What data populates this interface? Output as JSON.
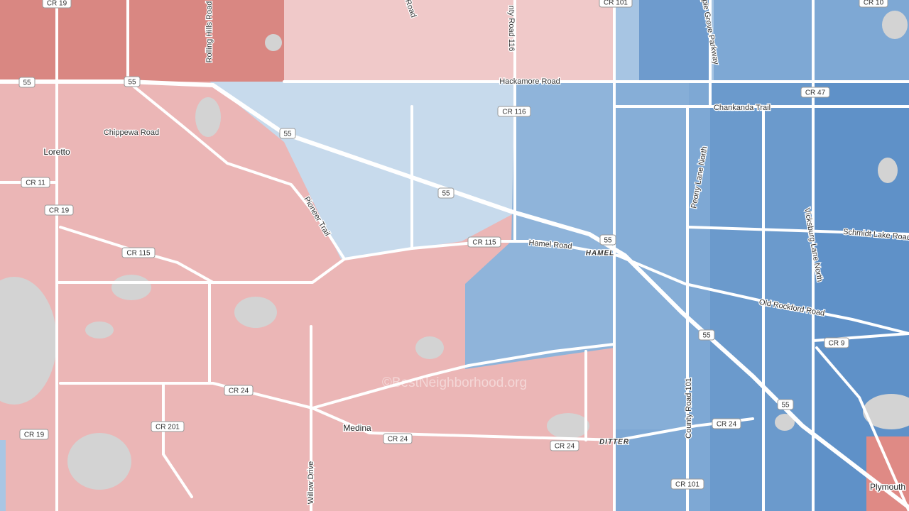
{
  "places": [
    "Loretto",
    "Medina",
    "Plymouth"
  ],
  "districts": [
    "HAMEL",
    "DITTER"
  ],
  "road_names": [
    "Rolling Hills Road",
    "Road",
    "nty Road 116",
    "ple Grove Parkway",
    "Hackamore Road",
    "Chankanda Trail",
    "Chippewa Road",
    "Pioneer Trail",
    "Peony Lane North",
    "Vicksburg Lane North",
    "Schmidt Lake Road",
    "Hamel Road",
    "Old Rockford Road",
    "County Road 101",
    "Willow Drive"
  ],
  "shields": [
    "CR 19",
    "CR 101",
    "CR 10",
    "55",
    "55",
    "CR 47",
    "CR 116",
    "55",
    "CR 11",
    "CR 19",
    "55",
    "CR 115",
    "CR 115",
    "55",
    "55",
    "CR 9",
    "CR 24",
    "CR 201",
    "CR 19",
    "CR 24",
    "CR 24",
    "CR 24",
    "55",
    "CR 101"
  ],
  "watermark": "©BestNeighborhood.org"
}
